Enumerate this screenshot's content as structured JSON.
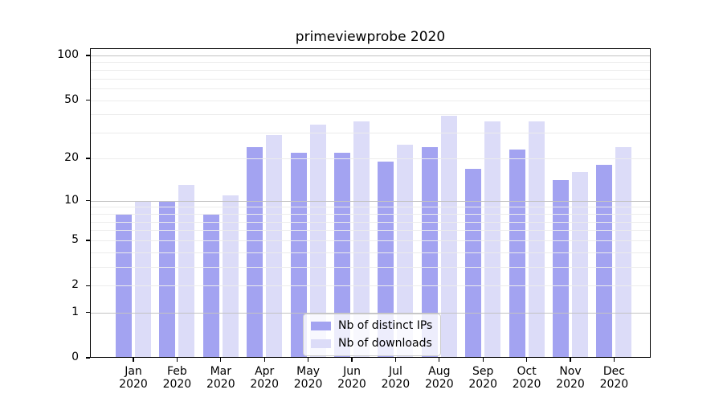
{
  "chart_data": {
    "type": "bar",
    "title": "primeviewprobe 2020",
    "yscale": "log1p",
    "categories": [
      "Jan 2020",
      "Feb 2020",
      "Mar 2020",
      "Apr 2020",
      "May 2020",
      "Jun 2020",
      "Jul 2020",
      "Aug 2020",
      "Sep 2020",
      "Oct 2020",
      "Nov 2020",
      "Dec 2020"
    ],
    "x_tick_months": [
      "Jan",
      "Feb",
      "Mar",
      "Apr",
      "May",
      "Jun",
      "Jul",
      "Aug",
      "Sep",
      "Oct",
      "Nov",
      "Dec"
    ],
    "x_tick_year": "2020",
    "series": [
      {
        "name": "Nb of distinct IPs",
        "color": "#a3a3f1",
        "values": [
          8,
          10,
          8,
          24,
          22,
          22,
          19,
          24,
          17,
          23,
          14,
          18
        ]
      },
      {
        "name": "Nb of downloads",
        "color": "#dcdcf8",
        "values": [
          10,
          13,
          11,
          29,
          34,
          36,
          25,
          39,
          36,
          36,
          16,
          24
        ]
      }
    ],
    "y_ticks": [
      0,
      1,
      2,
      5,
      10,
      20,
      50,
      100
    ],
    "y_minor_gridlines": [
      2,
      3,
      4,
      5,
      6,
      7,
      8,
      9,
      20,
      30,
      40,
      50,
      60,
      70,
      80,
      90
    ],
    "y_major_gridlines": [
      1,
      10,
      100
    ],
    "ylim": [
      0,
      112
    ],
    "xlabel": "",
    "ylabel": "",
    "grid": "horizontal major+minor, drawn over bars",
    "legend_position": "lower center",
    "colors": {
      "major_grid": "#c3c3c3",
      "minor_grid": "#ececec",
      "axis": "#000000",
      "background": "#ffffff"
    }
  }
}
